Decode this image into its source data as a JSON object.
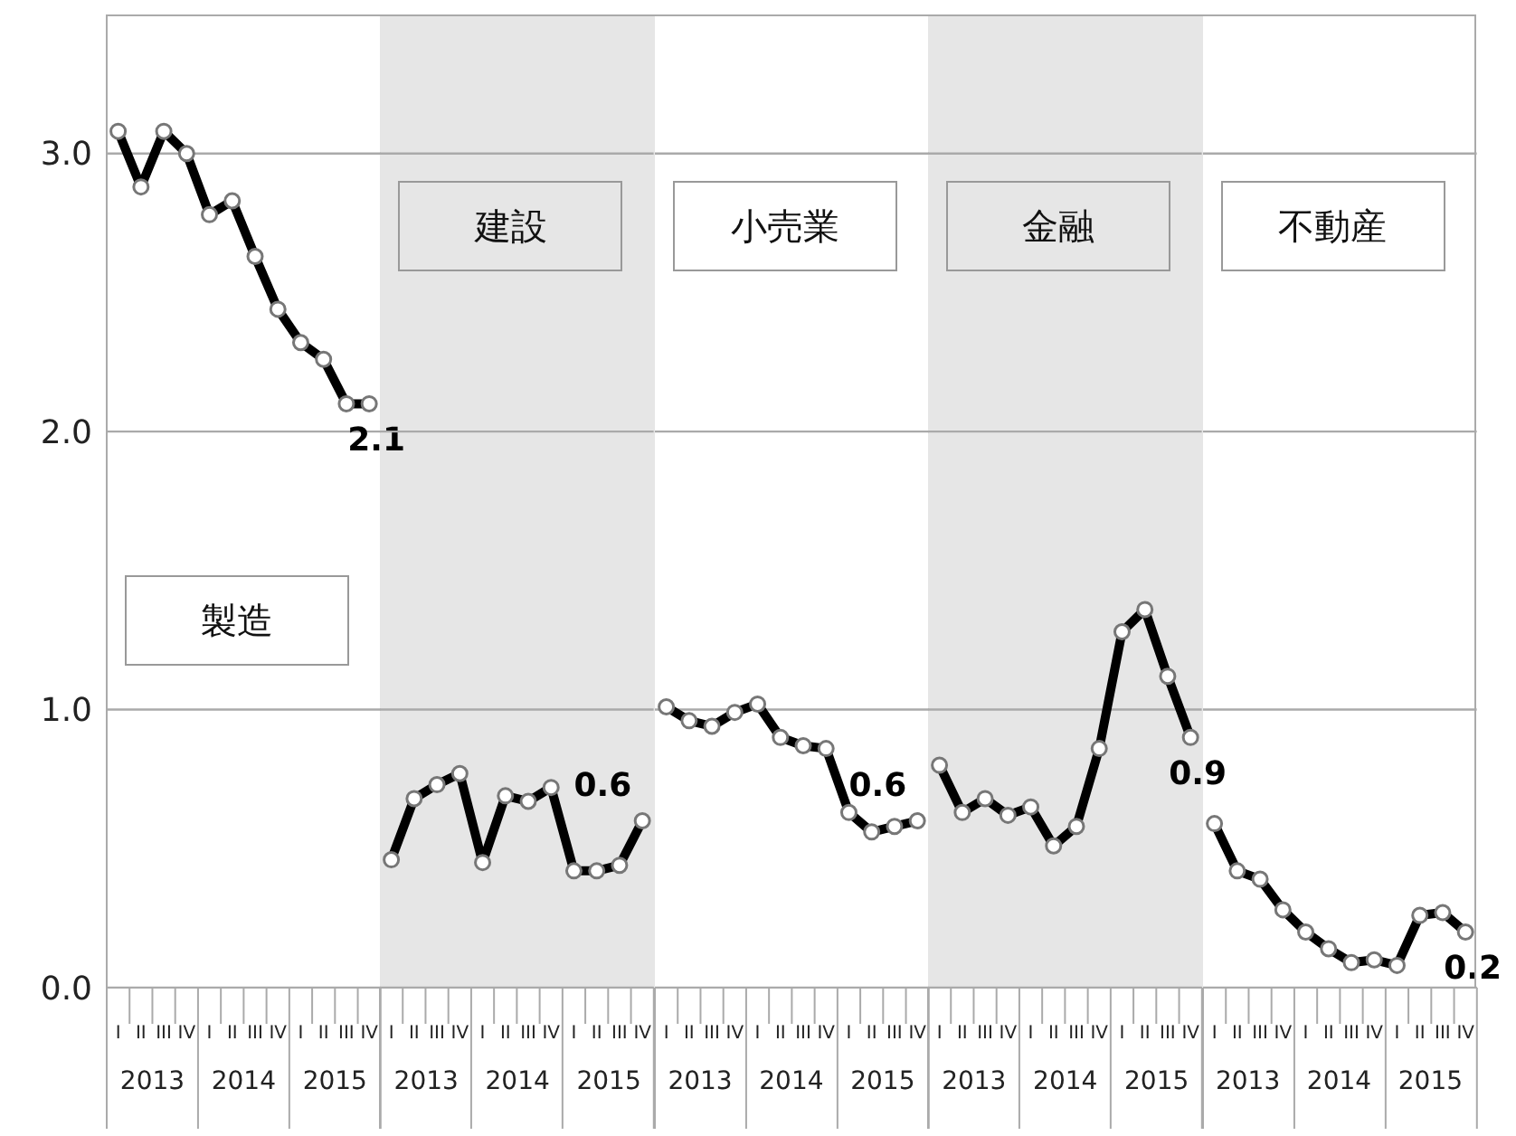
{
  "chart_data": [
    {
      "type": "line",
      "title": "製造",
      "categories": [
        "I",
        "II",
        "III",
        "IV",
        "I",
        "II",
        "III",
        "IV",
        "I",
        "II",
        "III",
        "IV"
      ],
      "annotations": [
        "2013",
        "2014",
        "2015"
      ],
      "values": [
        3.08,
        2.88,
        3.08,
        3.0,
        2.78,
        2.83,
        2.63,
        2.44,
        2.32,
        2.26,
        2.1,
        2.1
      ],
      "value_labels": [
        null,
        null,
        null,
        null,
        null,
        null,
        null,
        null,
        null,
        null,
        null,
        "2.1"
      ],
      "color": "#000000",
      "marker": "circle",
      "line_style": "solid",
      "grid": "y",
      "ylim": [
        0,
        3.5
      ],
      "yticks": [
        {
          "value": 0,
          "label": "0.0"
        },
        {
          "value": 1,
          "label": "1.0"
        },
        {
          "value": 2,
          "label": "2.0"
        },
        {
          "value": 3,
          "label": "3.0"
        }
      ]
    },
    {
      "type": "line",
      "title": "建設",
      "categories": [
        "I",
        "II",
        "III",
        "IV",
        "I",
        "II",
        "III",
        "IV",
        "I",
        "II",
        "III",
        "IV"
      ],
      "annotations": [
        "2013",
        "2014",
        "2015"
      ],
      "values": [
        0.46,
        0.68,
        0.73,
        0.77,
        0.45,
        0.69,
        0.67,
        0.72,
        0.42,
        0.42,
        0.44,
        0.6
      ],
      "value_labels": [
        null,
        null,
        null,
        null,
        null,
        null,
        null,
        null,
        null,
        null,
        null,
        "0.6"
      ],
      "color": "#000000",
      "marker": "circle",
      "line_style": "solid",
      "grid": "y",
      "ylim": [
        0,
        3.5
      ],
      "yticks": [
        0,
        1,
        2,
        3
      ],
      "tick_labels": "x"
    },
    {
      "type": "line",
      "title": "小売業",
      "categories": [
        "I",
        "II",
        "III",
        "IV",
        "I",
        "II",
        "III",
        "IV",
        "I",
        "II",
        "III",
        "IV"
      ],
      "annotations": [
        "2013",
        "2014",
        "2015"
      ],
      "values": [
        1.01,
        0.96,
        0.94,
        0.99,
        1.02,
        0.9,
        0.87,
        0.86,
        0.63,
        0.56,
        0.58,
        0.6
      ],
      "value_labels": [
        null,
        null,
        null,
        null,
        null,
        null,
        null,
        null,
        null,
        null,
        null,
        "0.6"
      ],
      "color": "#000000",
      "marker": "circle",
      "line_style": "solid",
      "grid": "y",
      "ylim": [
        0,
        3.5
      ],
      "yticks": [
        0,
        1,
        2,
        3
      ],
      "tick_labels": "x"
    },
    {
      "type": "line",
      "title": "金融",
      "categories": [
        "I",
        "II",
        "III",
        "IV",
        "I",
        "II",
        "III",
        "IV",
        "I",
        "II",
        "III",
        "IV"
      ],
      "annotations": [
        "2013",
        "2014",
        "2015"
      ],
      "values": [
        0.8,
        0.63,
        0.68,
        0.62,
        0.65,
        0.51,
        0.58,
        0.86,
        1.28,
        1.36,
        1.12,
        0.9
      ],
      "value_labels": [
        null,
        null,
        null,
        null,
        null,
        null,
        null,
        null,
        null,
        null,
        null,
        "0.9"
      ],
      "color": "#000000",
      "marker": "circle",
      "line_style": "solid",
      "grid": "y",
      "ylim": [
        0,
        3.5
      ],
      "yticks": [
        0,
        1,
        2,
        3
      ],
      "tick_labels": "x"
    },
    {
      "type": "line",
      "title": "不動産",
      "categories": [
        "I",
        "II",
        "III",
        "IV",
        "I",
        "II",
        "III",
        "IV",
        "I",
        "II",
        "III",
        "IV"
      ],
      "annotations": [
        "2013",
        "2014",
        "2015"
      ],
      "values": [
        0.59,
        0.42,
        0.39,
        0.28,
        0.2,
        0.14,
        0.09,
        0.1,
        0.08,
        0.26,
        0.27,
        0.2
      ],
      "value_labels": [
        null,
        null,
        null,
        null,
        null,
        null,
        null,
        null,
        null,
        null,
        null,
        "0.2"
      ],
      "color": "#000000",
      "marker": "circle",
      "line_style": "solid",
      "grid": "y",
      "ylim": [
        0,
        3.5
      ],
      "yticks": [
        0,
        1,
        2,
        3
      ],
      "tick_labels": "x"
    }
  ]
}
